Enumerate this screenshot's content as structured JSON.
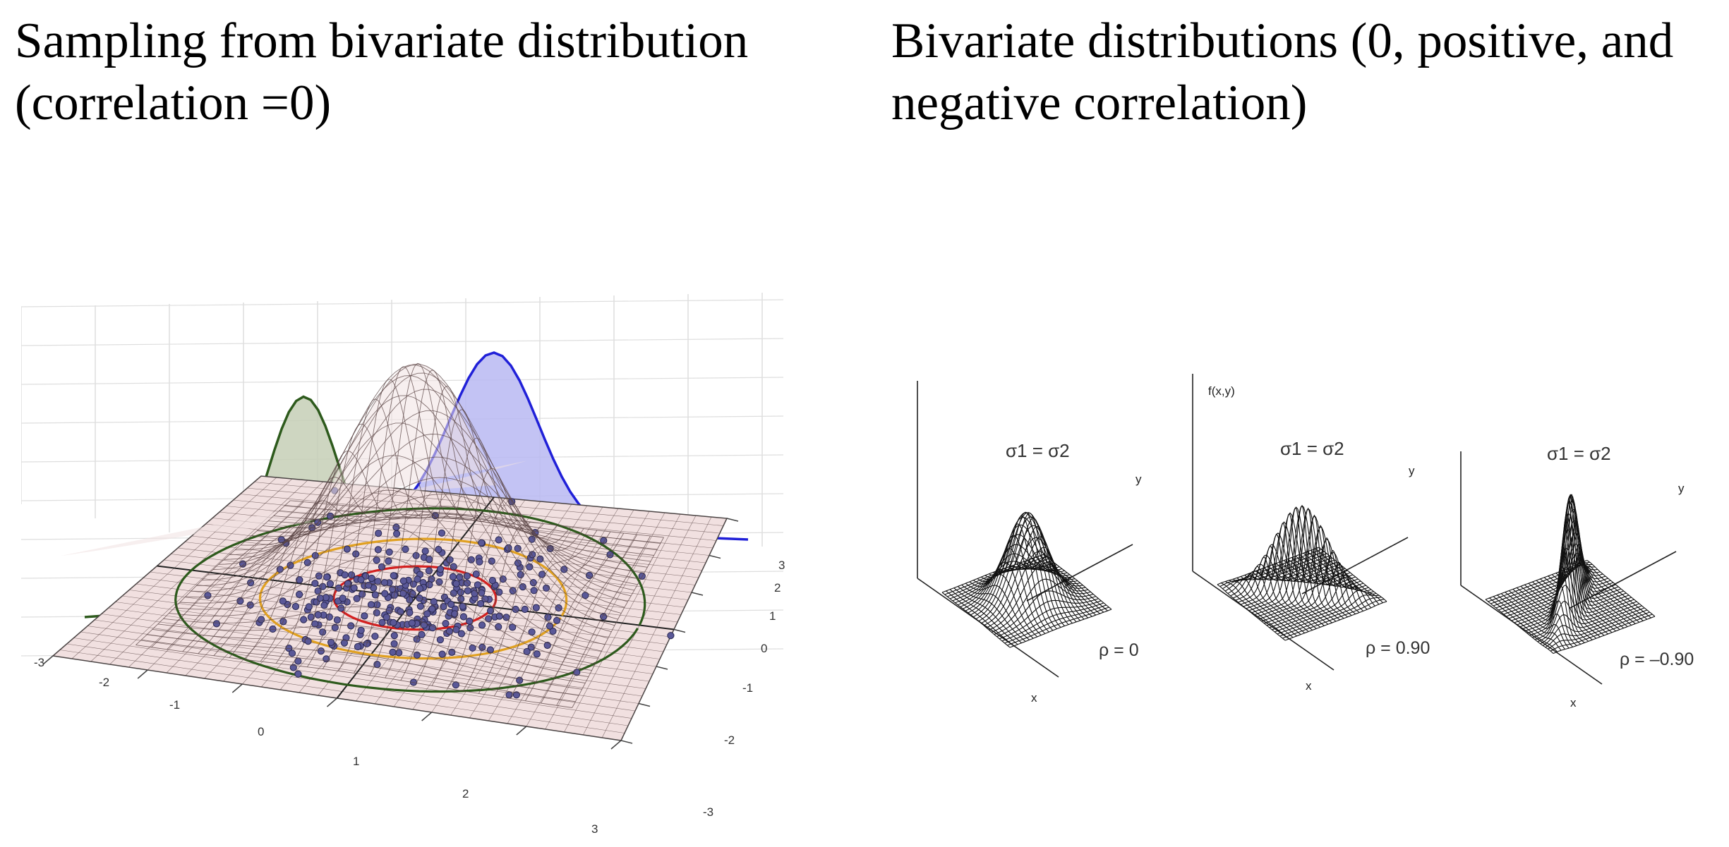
{
  "left_panel": {
    "title_line1": "Sampling from bivariate distribution",
    "title_line2": "(correlation =0)",
    "x_ticks": [
      "-3",
      "-2",
      "-1",
      "0",
      "1",
      "2",
      "3"
    ],
    "y_ticks": [
      "3",
      "2",
      "1",
      "0",
      "-1",
      "-2",
      "-3"
    ],
    "colors": {
      "surface": "#f1e0e0",
      "mesh": "#5b4646",
      "marginal_left": "#2d5a1c",
      "marginal_left_fill": "#c5cfb6",
      "marginal_right": "#2020d8",
      "marginal_right_fill": "#b8b8f2",
      "contour_inner": "#d42020",
      "contour_middle": "#e0a020",
      "contour_outer": "#2d5a1c",
      "points": "#5a5898"
    }
  },
  "right_panel": {
    "title_line1": "Bivariate distributions (0, positive, and",
    "title_line2": "negative correlation)",
    "axis_label_f": "f(x,y)",
    "sigma_label": "σ1 = σ2",
    "x_label": "x",
    "y_label": "y",
    "rho_labels": [
      "ρ = 0",
      "ρ = 0.90",
      "ρ = –0.90"
    ]
  }
}
